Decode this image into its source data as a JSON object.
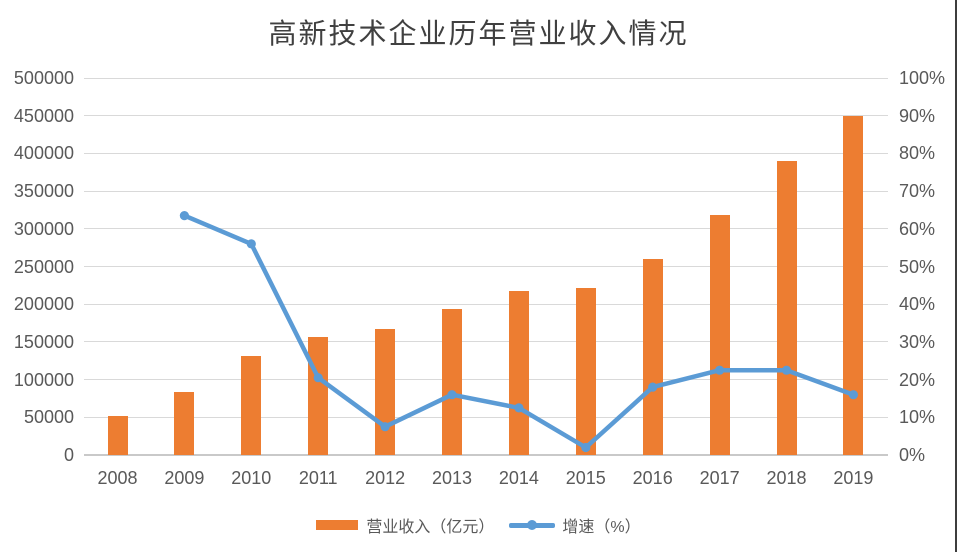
{
  "title": "高新技术企业历年营业收入情况",
  "legend": {
    "items": [
      {
        "label": "营业收入（亿元）",
        "marker": "bar-swatch",
        "color": "#ED7D31"
      },
      {
        "label": "增速（%）",
        "marker": "line-with-dot",
        "color": "#5B9BD5"
      }
    ],
    "position": "bottom"
  },
  "colors": {
    "bar_orange": "#ED7D31",
    "line_blue": "#5B9BD5",
    "gridline": "#D9D9D9",
    "axis_line": "#C9C9C9",
    "axis_text": "#595959",
    "title_text": "#404040"
  },
  "chart_data": {
    "type": "bar",
    "subtype": "combo bar + line, dual y-axis",
    "title": "高新技术企业历年营业收入情况",
    "categories": [
      "2008",
      "2009",
      "2010",
      "2011",
      "2012",
      "2013",
      "2014",
      "2015",
      "2016",
      "2017",
      "2018",
      "2019"
    ],
    "series": [
      {
        "name": "营业收入（亿元）",
        "type": "bar",
        "axis": "left",
        "color": "#ED7D31",
        "values": [
          52000,
          84000,
          131000,
          157000,
          167000,
          194000,
          217000,
          222000,
          260000,
          318000,
          390000,
          450000
        ]
      },
      {
        "name": "增速（%）",
        "type": "line",
        "axis": "right",
        "color": "#5B9BD5",
        "values": [
          null,
          63.5,
          56,
          20.5,
          7.5,
          16,
          12.5,
          2,
          18,
          22.5,
          22.5,
          16
        ]
      }
    ],
    "left_axis": {
      "min": 0,
      "max": 500000,
      "step": 50000,
      "ticks": [
        "0",
        "50000",
        "100000",
        "150000",
        "200000",
        "250000",
        "300000",
        "350000",
        "400000",
        "450000",
        "500000"
      ]
    },
    "right_axis": {
      "min": 0,
      "max": 100,
      "step": 10,
      "ticks": [
        "0%",
        "10%",
        "20%",
        "30%",
        "40%",
        "50%",
        "60%",
        "70%",
        "80%",
        "90%",
        "100%"
      ]
    },
    "grid": true,
    "legend_position": "bottom"
  }
}
